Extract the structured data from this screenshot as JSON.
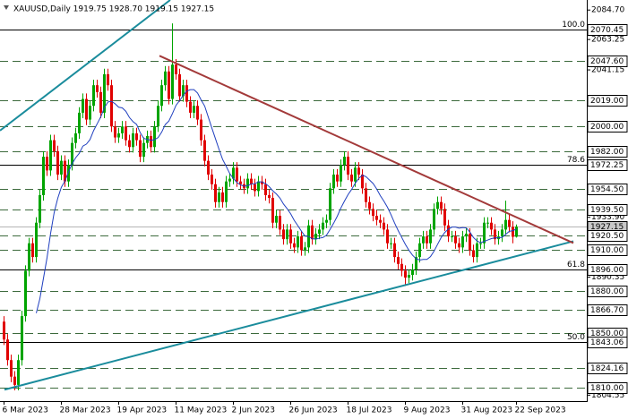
{
  "chart_data": {
    "type": "candlestick",
    "title": "XAUUSD,Daily  1919.75 1928.70 1919.15 1927.15",
    "categories": [
      "6 Mar 2023",
      null,
      null,
      null,
      null,
      null,
      null,
      null,
      null,
      null,
      null,
      null,
      null,
      null,
      null,
      null,
      "28 Mar 2023",
      null,
      null,
      null,
      null,
      null,
      null,
      null,
      null,
      null,
      null,
      null,
      null,
      null,
      null,
      null,
      "19 Apr 2023",
      null,
      null,
      null,
      null,
      null,
      null,
      null,
      null,
      null,
      null,
      null,
      null,
      null,
      null,
      null,
      "11 May 2023",
      null,
      null,
      null,
      null,
      null,
      null,
      null,
      null,
      null,
      null,
      null,
      null,
      null,
      null,
      null,
      "2 Jun 2023",
      null,
      null,
      null,
      null,
      null,
      null,
      null,
      null,
      null,
      null,
      null,
      null,
      null,
      null,
      null,
      "26 Jun 2023",
      null,
      null,
      null,
      null,
      null,
      null,
      null,
      null,
      null,
      null,
      null,
      null,
      null,
      null,
      null,
      "18 Jul 2023",
      null,
      null,
      null,
      null,
      null,
      null,
      null,
      null,
      null,
      null,
      null,
      null,
      null,
      null,
      null,
      "9 Aug 2023",
      null,
      null,
      null,
      null,
      null,
      null,
      null,
      null,
      null,
      null,
      null,
      null,
      null,
      null,
      null,
      "31 Aug 2023",
      null,
      null,
      null,
      null,
      null,
      null,
      null,
      null,
      null,
      null,
      null,
      null,
      null,
      null,
      "22 Sep 2023"
    ],
    "open": [
      1858,
      1845,
      1830,
      1818,
      1812,
      1830,
      1862,
      1895,
      1915,
      1905,
      1930,
      1950,
      1978,
      1968,
      1990,
      1982,
      1965,
      1975,
      1960,
      1972,
      1988,
      1995,
      2010,
      2020,
      2005,
      2015,
      2030,
      2025,
      2010,
      2038,
      2030,
      2000,
      1992,
      1995,
      2000,
      1990,
      1985,
      1995,
      1990,
      1978,
      1988,
      1993,
      1985,
      2000,
      2015,
      2030,
      2040,
      2020,
      2045,
      2038,
      2022,
      2030,
      2018,
      2010,
      2015,
      2005,
      1990,
      1975,
      1965,
      1958,
      1945,
      1952,
      1945,
      1960,
      1962,
      1970,
      1960,
      1958,
      1955,
      1962,
      1958,
      1953,
      1960,
      1958,
      1950,
      1948,
      1930,
      1935,
      1925,
      1918,
      1925,
      1915,
      1912,
      1920,
      1910,
      1912,
      1928,
      1918,
      1922,
      1925,
      1930,
      1932,
      1955,
      1965,
      1960,
      1972,
      1978,
      1965,
      1960,
      1970,
      1965,
      1955,
      1945,
      1940,
      1935,
      1932,
      1930,
      1925,
      1915,
      1915,
      1905,
      1900,
      1895,
      1890,
      1892,
      1896,
      1905,
      1915,
      1920,
      1915,
      1925,
      1940,
      1945,
      1940,
      1928,
      1920,
      1920,
      1915,
      1912,
      1920,
      1922,
      1910,
      1905,
      1915,
      1915,
      1930,
      1930,
      1925,
      1918,
      1920,
      1925,
      1932,
      1927,
      1919.75
    ],
    "high": [
      1862,
      1849,
      1834,
      1822,
      1834,
      1866,
      1899,
      1919,
      1919,
      1934,
      1954,
      1982,
      1982,
      1994,
      1994,
      1986,
      1979,
      1979,
      1976,
      1992,
      1999,
      2014,
      2024,
      2024,
      2019,
      2034,
      2034,
      2029,
      2042,
      2042,
      2034,
      2004,
      1999,
      2004,
      2004,
      1994,
      1999,
      1999,
      1994,
      1992,
      1997,
      1997,
      2004,
      2019,
      2034,
      2044,
      2044,
      2075,
      2049,
      2042,
      2034,
      2034,
      2022,
      2019,
      2019,
      2009,
      1994,
      1979,
      1969,
      1962,
      1956,
      1956,
      1964,
      1966,
      1974,
      1974,
      1964,
      1962,
      1966,
      1966,
      1962,
      1964,
      1964,
      1962,
      1954,
      1952,
      1939,
      1939,
      1929,
      1929,
      1929,
      1919,
      1924,
      1924,
      1916,
      1932,
      1932,
      1926,
      1929,
      1934,
      1936,
      1959,
      1969,
      1969,
      1976,
      1982,
      1982,
      1969,
      1974,
      1974,
      1969,
      1959,
      1949,
      1944,
      1939,
      1936,
      1934,
      1929,
      1919,
      1919,
      1909,
      1904,
      1899,
      1896,
      1900,
      1909,
      1919,
      1924,
      1924,
      1929,
      1944,
      1949,
      1949,
      1944,
      1932,
      1924,
      1924,
      1919,
      1924,
      1926,
      1926,
      1914,
      1919,
      1919,
      1934,
      1934,
      1934,
      1929,
      1924,
      1929,
      1946,
      1936,
      1931,
      1928.7
    ],
    "low": [
      1841,
      1826,
      1814,
      1808,
      1808,
      1826,
      1858,
      1891,
      1901,
      1901,
      1926,
      1946,
      1964,
      1964,
      1978,
      1961,
      1961,
      1956,
      1956,
      1968,
      1984,
      1991,
      2006,
      2001,
      2001,
      2011,
      2021,
      2006,
      2006,
      2026,
      1996,
      1988,
      1988,
      1991,
      1986,
      1981,
      1981,
      1986,
      1974,
      1974,
      1984,
      1981,
      1981,
      1996,
      2011,
      2026,
      2016,
      2016,
      2034,
      2018,
      2018,
      2014,
      2006,
      2006,
      2001,
      1986,
      1971,
      1961,
      1954,
      1941,
      1941,
      1941,
      1941,
      1956,
      1958,
      1956,
      1954,
      1951,
      1951,
      1954,
      1949,
      1949,
      1954,
      1946,
      1944,
      1926,
      1926,
      1921,
      1914,
      1914,
      1911,
      1908,
      1908,
      1906,
      1906,
      1908,
      1914,
      1914,
      1918,
      1921,
      1926,
      1928,
      1951,
      1956,
      1956,
      1968,
      1961,
      1956,
      1956,
      1961,
      1951,
      1941,
      1936,
      1931,
      1928,
      1926,
      1921,
      1911,
      1911,
      1901,
      1896,
      1891,
      1884,
      1886,
      1888,
      1892,
      1901,
      1911,
      1911,
      1911,
      1921,
      1936,
      1936,
      1924,
      1916,
      1916,
      1911,
      1908,
      1908,
      1916,
      1906,
      1901,
      1901,
      1911,
      1911,
      1926,
      1921,
      1914,
      1914,
      1916,
      1921,
      1923,
      1915,
      1919.15
    ],
    "close": [
      1845,
      1830,
      1818,
      1812,
      1830,
      1862,
      1895,
      1915,
      1905,
      1930,
      1950,
      1978,
      1968,
      1990,
      1982,
      1965,
      1975,
      1960,
      1972,
      1988,
      1995,
      2010,
      2020,
      2005,
      2015,
      2030,
      2025,
      2010,
      2038,
      2030,
      2000,
      1992,
      1995,
      2000,
      1990,
      1985,
      1995,
      1990,
      1978,
      1988,
      1993,
      1985,
      2000,
      2015,
      2030,
      2040,
      2020,
      2045,
      2038,
      2022,
      2030,
      2018,
      2010,
      2015,
      2005,
      1990,
      1975,
      1965,
      1958,
      1945,
      1952,
      1945,
      1960,
      1962,
      1970,
      1960,
      1958,
      1955,
      1962,
      1958,
      1953,
      1960,
      1958,
      1950,
      1948,
      1930,
      1935,
      1925,
      1918,
      1925,
      1915,
      1912,
      1920,
      1910,
      1912,
      1928,
      1918,
      1922,
      1925,
      1930,
      1932,
      1955,
      1965,
      1960,
      1972,
      1978,
      1965,
      1960,
      1970,
      1965,
      1955,
      1945,
      1940,
      1935,
      1932,
      1930,
      1925,
      1915,
      1915,
      1905,
      1900,
      1895,
      1890,
      1892,
      1896,
      1905,
      1915,
      1920,
      1915,
      1925,
      1940,
      1945,
      1940,
      1928,
      1920,
      1920,
      1915,
      1912,
      1920,
      1922,
      1910,
      1905,
      1915,
      1915,
      1930,
      1930,
      1925,
      1918,
      1920,
      1925,
      1932,
      1927,
      1919.75,
      1927.15
    ],
    "up_color": "#00a400",
    "down_color": "#e00000",
    "ma": {
      "color": "#1f3fbf",
      "values": [
        null,
        null,
        null,
        null,
        null,
        null,
        null,
        null,
        null,
        1864.2,
        1874.7,
        1889.5,
        1904.5,
        1922.3,
        1937.5,
        1947.8,
        1955.8,
        1960.3,
        1967,
        1972.8,
        1977.3,
        1980.5,
        1985.7,
        1987.2,
        1990.5,
        1997,
        2002,
        2007,
        2013.6,
        2017.8,
        2018.3,
        2016.5,
        2014,
        2013.5,
        2011,
        2006.5,
        2003.5,
        2001.5,
        1995.5,
        1991.3,
        1990.6,
        1989.9,
        1990.4,
        1991.9,
        1995.9,
        2001.4,
        2003.9,
        2009.4,
        2015.4,
        2018.8,
        2022.5,
        2025.8,
        2026.8,
        2026.8,
        2024.3,
        2019.3,
        2014.8,
        2006.8,
        1998.8,
        1991.1,
        1983.3,
        1976,
        1971,
        1965.7,
        1962.2,
        1959.2,
        1957.5,
        1956.5,
        1956.9,
        1958.2,
        1958.3,
        1959.8,
        1959.6,
        1958.4,
        1956.2,
        1953.2,
        1950.9,
        1947.9,
        1943.5,
        1940.2,
        1936.4,
        1931.6,
        1927.8,
        1923.8,
        1920.2,
        1920,
        1918.3,
        1918,
        1918.7,
        1919.2,
        1920.9,
        1925.2,
        1929.7,
        1934.7,
        1940.7,
        1945.7,
        1950.4,
        1954.2,
        1958.7,
        1962.2,
        1964.5,
        1963.5,
        1961,
        1958.5,
        1954.5,
        1949.7,
        1945.7,
        1941.2,
        1935.7,
        1929.7,
        1924.2,
        1919.2,
        1914.2,
        1909.9,
        1906.3,
        1903.8,
        1902.8,
        1903.3,
        1903.3,
        1905.3,
        1909.3,
        1914.3,
        1919.3,
        1922.9,
        1925.3,
        1926.8,
        1926.8,
        1926,
        1926.5,
        1926.2,
        1923.2,
        1919.2,
        1916.7,
        1915.4,
        1916.4,
        1917.4,
        1918.4,
        1919,
        1919,
        1919.3,
        1921.5,
        1923.7,
        1924.2,
        1925.4
      ]
    },
    "ylim": [
      1800.2,
      2092
    ],
    "yticks": [
      {
        "value": 2084.7,
        "label": "2084.70"
      },
      {
        "value": 2063.25,
        "label": "2063.25"
      },
      {
        "value": 2041.15,
        "label": "2041.15"
      },
      {
        "value": 1933.9,
        "label": "1933.90"
      },
      {
        "value": 1890.35,
        "label": "1890.35"
      },
      {
        "value": 1804.55,
        "label": "1804.55"
      }
    ],
    "levels": [
      {
        "value": 2070.45,
        "label": "2070.45",
        "style": "solid",
        "fib": "100.0"
      },
      {
        "value": 2047.6,
        "label": "2047.60",
        "style": "dashed"
      },
      {
        "value": 2019,
        "label": "2019.00",
        "style": "dashed"
      },
      {
        "value": 2000,
        "label": "2000.00",
        "style": "dashed"
      },
      {
        "value": 1982,
        "label": "1982.00",
        "style": "dashed"
      },
      {
        "value": 1972.25,
        "label": "1972.25",
        "style": "solid",
        "fib": "78.6"
      },
      {
        "value": 1954.5,
        "label": "1954.50",
        "style": "dashed"
      },
      {
        "value": 1939.5,
        "label": "1939.50",
        "style": "dashed"
      },
      {
        "value": 1927.15,
        "label": "1927.15",
        "style": "price"
      },
      {
        "value": 1920.5,
        "label": "1920.50",
        "style": "dashed"
      },
      {
        "value": 1910,
        "label": "1910.00",
        "style": "dashed"
      },
      {
        "value": 1896,
        "label": "1896.00",
        "style": "solid",
        "fib": "61.8"
      },
      {
        "value": 1880,
        "label": "1880.00",
        "style": "dashed"
      },
      {
        "value": 1866.7,
        "label": "1866.70",
        "style": "dashed"
      },
      {
        "value": 1850,
        "label": "1850.00",
        "style": "dashed"
      },
      {
        "value": 1843.06,
        "label": "1843.06",
        "style": "solid",
        "fib": "50.0"
      },
      {
        "value": 1824.16,
        "label": "1824.16",
        "style": "dashed"
      },
      {
        "value": 1810,
        "label": "1810.00",
        "style": "dashed"
      }
    ],
    "trendlines": [
      {
        "color": "#1a8c9c",
        "x": [
          -1,
          46.5
        ],
        "y": [
          1997,
          2092
        ]
      },
      {
        "color": "#1a8c9c",
        "x": [
          0.25,
          159
        ],
        "y": [
          1808.5,
          1916.5
        ]
      },
      {
        "color": "#a33a3a",
        "x": [
          43.5,
          159
        ],
        "y": [
          2051.4,
          1915.2
        ]
      }
    ]
  }
}
